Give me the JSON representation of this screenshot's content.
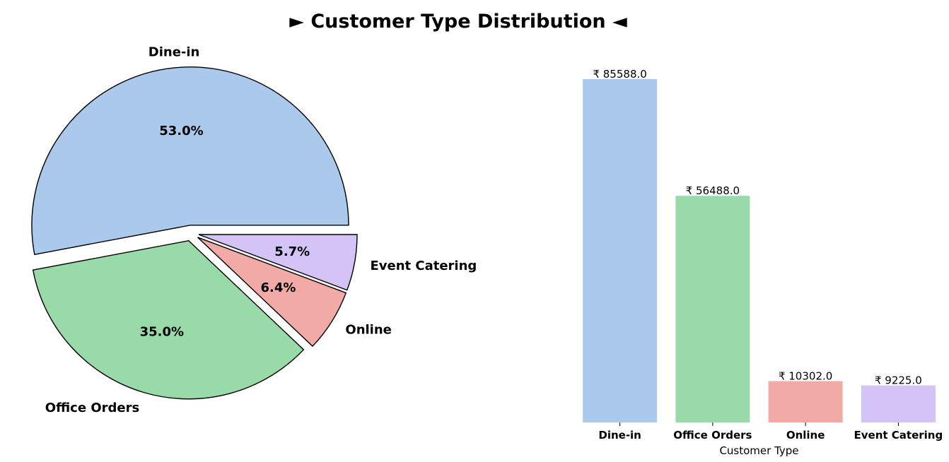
{
  "figure": {
    "title": "► Customer Type Distribution ◄"
  },
  "chart_data": [
    {
      "type": "pie",
      "categories": [
        "Dine-in",
        "Office Orders",
        "Online",
        "Event Catering"
      ],
      "values": [
        85588.0,
        56488.0,
        10302.0,
        9225.0
      ],
      "percent_labels": [
        "53.0%",
        "35.0%",
        "6.4%",
        "5.7%"
      ],
      "colors": [
        "#abc9eb",
        "#98dba9",
        "#f2aaa7",
        "#d3c3f6"
      ],
      "edge_color": "#000000",
      "exploded": true
    },
    {
      "type": "bar",
      "categories": [
        "Dine-in",
        "Office Orders",
        "Online",
        "Event Catering"
      ],
      "values": [
        85588.0,
        56488.0,
        10302.0,
        9225.0
      ],
      "value_labels": [
        "₹ 85588.0",
        "₹ 56488.0",
        "₹ 10302.0",
        "₹ 9225.0"
      ],
      "colors": [
        "#abc9eb",
        "#98dba9",
        "#f2aaa7",
        "#d3c3f6"
      ],
      "xlabel": "Customer Type",
      "ylabel": "",
      "ylim": [
        0,
        85588.0
      ],
      "grid": false,
      "y_axis_visible": false
    }
  ]
}
